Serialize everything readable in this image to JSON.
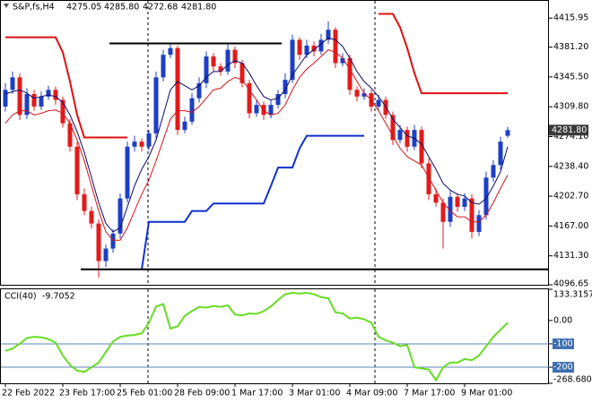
{
  "chart_data": {
    "type": "candlestick",
    "symbol": "S&P,fs,H4",
    "header_labels": [
      "4275.05",
      "4285.80",
      "4272.68",
      "4281.80"
    ],
    "categories": [
      "22 Feb 2022",
      null,
      null,
      null,
      null,
      null,
      null,
      null,
      "23 Feb 17:00",
      null,
      null,
      null,
      null,
      null,
      null,
      null,
      "25 Feb 01:00",
      null,
      null,
      null,
      null,
      null,
      null,
      null,
      "28 Feb 09:00",
      null,
      null,
      null,
      null,
      null,
      null,
      null,
      "1 Mar 17:00",
      null,
      null,
      null,
      null,
      null,
      null,
      null,
      "3 Mar 01:00",
      null,
      null,
      null,
      null,
      null,
      null,
      null,
      "4 Mar 09:00",
      null,
      null,
      null,
      null,
      null,
      null,
      null,
      "7 Mar 17:00",
      null,
      null,
      null,
      null,
      null,
      null,
      null,
      "9 Mar 01:00",
      null,
      null,
      null,
      null,
      null,
      null
    ],
    "open": [
      4310,
      4330,
      4345,
      4300,
      4325,
      4310,
      4322,
      4330,
      4318,
      4290,
      4262,
      4205,
      4185,
      4170,
      4125,
      4140,
      4158,
      4200,
      4262,
      4268,
      4262,
      4278,
      4345,
      4372,
      4380,
      4282,
      4292,
      4320,
      4338,
      4370,
      4358,
      4352,
      4378,
      4362,
      4338,
      4302,
      4312,
      4300,
      4312,
      4325,
      4342,
      4390,
      4372,
      4383,
      4376,
      4390,
      4402,
      4362,
      4368,
      4330,
      4322,
      4326,
      4310,
      4318,
      4300,
      4270,
      4282,
      4262,
      4282,
      4242,
      4205,
      4195,
      4172,
      4202,
      4190,
      4200,
      4160,
      4180,
      4225,
      4240,
      4275.05
    ],
    "high": [
      4338,
      4352,
      4350,
      4332,
      4330,
      4328,
      4335,
      4334,
      4322,
      4295,
      4268,
      4212,
      4190,
      4175,
      4145,
      4163,
      4206,
      4268,
      4275,
      4272,
      4282,
      4352,
      4378,
      4386,
      4383,
      4298,
      4326,
      4345,
      4376,
      4374,
      4362,
      4385,
      4382,
      4366,
      4342,
      4318,
      4316,
      4318,
      4330,
      4350,
      4396,
      4393,
      4390,
      4388,
      4397,
      4412,
      4405,
      4374,
      4372,
      4334,
      4332,
      4330,
      4324,
      4322,
      4304,
      4288,
      4286,
      4288,
      4286,
      4248,
      4212,
      4200,
      4210,
      4206,
      4206,
      4205,
      4186,
      4232,
      4246,
      4274,
      4285.8
    ],
    "low": [
      4304,
      4325,
      4294,
      4295,
      4305,
      4306,
      4318,
      4312,
      4285,
      4256,
      4198,
      4180,
      4164,
      4105,
      4118,
      4135,
      4152,
      4195,
      4256,
      4256,
      4258,
      4272,
      4340,
      4368,
      4276,
      4278,
      4288,
      4315,
      4332,
      4352,
      4347,
      4348,
      4356,
      4333,
      4296,
      4298,
      4294,
      4296,
      4308,
      4320,
      4338,
      4366,
      4368,
      4370,
      4372,
      4385,
      4356,
      4358,
      4324,
      4316,
      4318,
      4304,
      4306,
      4295,
      4264,
      4266,
      4256,
      4258,
      4236,
      4198,
      4190,
      4140,
      4166,
      4184,
      4185,
      4152,
      4155,
      4175,
      4220,
      4235,
      4272.68
    ],
    "close": [
      4330,
      4345,
      4300,
      4325,
      4310,
      4322,
      4330,
      4318,
      4290,
      4262,
      4205,
      4185,
      4170,
      4125,
      4140,
      4158,
      4200,
      4262,
      4268,
      4262,
      4278,
      4345,
      4372,
      4380,
      4282,
      4292,
      4320,
      4338,
      4370,
      4358,
      4352,
      4378,
      4362,
      4338,
      4302,
      4312,
      4300,
      4312,
      4325,
      4342,
      4390,
      4372,
      4383,
      4376,
      4390,
      4402,
      4362,
      4368,
      4330,
      4322,
      4326,
      4310,
      4318,
      4300,
      4270,
      4282,
      4262,
      4282,
      4242,
      4205,
      4195,
      4172,
      4202,
      4190,
      4200,
      4160,
      4180,
      4225,
      4240,
      4268,
      4281.8
    ],
    "up_color": "#1c3fc4",
    "down_color": "#e31a1a",
    "indicators": [
      {
        "color": "#0b0b6b",
        "width": 1,
        "values": [
          4325,
          4328,
          4330,
          4326,
          4320,
          4322,
          4324,
          4322,
          4315,
          4300,
          4280,
          4255,
          4225,
          4195,
          4170,
          4160,
          4165,
          4190,
          4215,
          4235,
          4250,
          4270,
          4300,
          4330,
          4340,
          4335,
          4330,
          4335,
          4345,
          4352,
          4352,
          4360,
          4365,
          4362,
          4350,
          4335,
          4322,
          4318,
          4320,
          4330,
          4348,
          4360,
          4372,
          4378,
          4385,
          4392,
          4390,
          4382,
          4368,
          4352,
          4340,
          4332,
          4322,
          4310,
          4295,
          4285,
          4275,
          4272,
          4265,
          4250,
          4235,
          4218,
          4210,
          4205,
          4203,
          4195,
          4193,
          4200,
          4215,
          4232,
          4262
        ]
      },
      {
        "color": "#d0141a",
        "width": 1,
        "values": [
          4290,
          4300,
          4305,
          4305,
          4300,
          4302,
          4305,
          4306,
          4302,
          4290,
          4270,
          4245,
          4215,
          4185,
          4160,
          4150,
          4150,
          4165,
          4185,
          4205,
          4222,
          4245,
          4270,
          4295,
          4305,
          4305,
          4303,
          4310,
          4320,
          4330,
          4332,
          4340,
          4345,
          4342,
          4330,
          4318,
          4305,
          4300,
          4302,
          4312,
          4330,
          4345,
          4355,
          4362,
          4370,
          4378,
          4375,
          4368,
          4355,
          4340,
          4326,
          4318,
          4305,
          4290,
          4275,
          4260,
          4250,
          4245,
          4240,
          4225,
          4210,
          4195,
          4185,
          4178,
          4178,
          4172,
          4172,
          4180,
          4195,
          4212,
          4228
        ]
      },
      {
        "color": "#dd1111",
        "width": 2,
        "values": [
          4393,
          4393,
          4393,
          4393,
          4393,
          4393,
          4393,
          4393,
          4375,
          4340,
          4300,
          4273,
          4273,
          4273,
          4273,
          4273,
          4273,
          4273,
          null,
          null,
          null,
          null,
          null,
          null,
          null,
          null,
          null,
          null,
          null,
          null,
          null,
          null,
          null,
          null,
          null,
          null,
          null,
          null,
          null,
          null,
          null,
          null,
          null,
          null,
          null,
          null,
          null,
          null,
          null,
          null,
          null,
          null,
          4421,
          4421,
          4421,
          4405,
          4380,
          4350,
          4326,
          4326,
          4326,
          4326,
          4326,
          4326,
          4326,
          4326,
          4326,
          4326,
          4326,
          4326,
          4326
        ]
      },
      {
        "color": "#1030d0",
        "width": 2,
        "values": [
          null,
          null,
          null,
          null,
          null,
          null,
          null,
          null,
          null,
          null,
          null,
          null,
          null,
          null,
          null,
          null,
          null,
          null,
          null,
          4115,
          4172,
          4172,
          4172,
          4172,
          4172,
          4172,
          4185,
          4185,
          4185,
          4194,
          4194,
          4194,
          4194,
          4194,
          4194,
          4194,
          4194,
          4215,
          4237,
          4237,
          4237,
          4260,
          4275,
          4275,
          4275,
          4275,
          4275,
          4275,
          4275,
          4275,
          4275,
          null,
          null,
          null,
          null,
          null,
          null,
          null,
          null,
          null,
          null,
          null,
          null,
          null,
          null,
          null,
          null,
          null,
          null,
          null,
          null
        ]
      }
    ],
    "levels": [
      {
        "value": 4385.6,
        "from": 15,
        "to": 38
      },
      {
        "value": 4115.2,
        "from": 11,
        "to": 70
      }
    ],
    "ylim": [
      4096.65,
      4437.6
    ],
    "yticks": [
      4415.95,
      {
        "value": 4381.2,
        "label": "4381.20"
      },
      {
        "value": 4345.5,
        "label": "4345.50"
      },
      {
        "value": 4309.8,
        "label": "4309.80"
      },
      {
        "value": 4274.1,
        "label": "4274.10"
      },
      {
        "value": 4238.4,
        "label": "4238.40"
      },
      {
        "value": 4202.7,
        "label": "4202.70"
      },
      {
        "value": 4167,
        "label": "4167.00"
      },
      {
        "value": 4131.3,
        "label": "4131.30"
      },
      4096.65
    ],
    "last_price": {
      "value": 4281.8,
      "label": "4281.80"
    },
    "cci": {
      "name": "CCI(40)",
      "color": "#66dd22",
      "values": [
        -130,
        -120,
        -100,
        -75,
        -70,
        -72,
        -80,
        -95,
        -150,
        -190,
        -215,
        -220,
        -200,
        -180,
        -135,
        -90,
        -70,
        -65,
        -62,
        -55,
        -10,
        60,
        70,
        -35,
        -25,
        20,
        40,
        58,
        55,
        62,
        58,
        65,
        25,
        22,
        30,
        28,
        40,
        60,
        88,
        112,
        118,
        115,
        118,
        112,
        100,
        95,
        35,
        30,
        8,
        12,
        5,
        -10,
        -70,
        -85,
        -95,
        -110,
        -105,
        -200,
        -205,
        -210,
        -255,
        -200,
        -180,
        -180,
        -165,
        -170,
        -150,
        -110,
        -70,
        -40,
        -9.7052
      ],
      "ylim": [
        -268.6802,
        133.3157
      ],
      "yticks": [
        133.3157,
        {
          "value": 0,
          "label": "0.00"
        },
        -100,
        -200,
        -268.6802
      ],
      "levels": [
        -100,
        -200
      ]
    }
  }
}
